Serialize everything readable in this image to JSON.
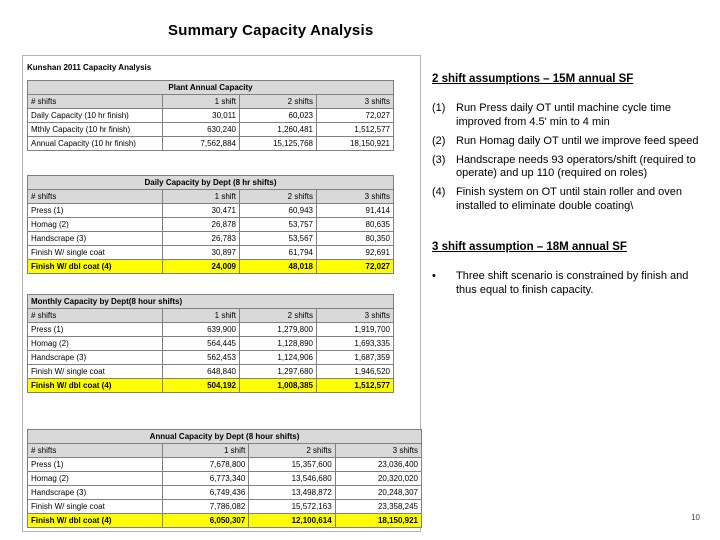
{
  "slide": {
    "title": "Summary Capacity Analysis",
    "page_number": "10"
  },
  "colors": {
    "highlight": "#ffff00",
    "header_bg": "#d9d9d9"
  },
  "worksheet": {
    "title": "Kunshan 2011 Capacity Analysis",
    "tables": [
      {
        "caption": "Plant Annual Capacity",
        "headers": [
          "# shifts",
          "1 shift",
          "2 shifts",
          "3 shifts"
        ],
        "rows": [
          {
            "label": "Daily Capacity (10 hr finish)",
            "values": [
              "30,011",
              "60,023",
              "72,027"
            ],
            "highlight": false
          },
          {
            "label": "Mthly Capacity (10 hr finish)",
            "values": [
              "630,240",
              "1,260,481",
              "1,512,577"
            ],
            "highlight": false
          },
          {
            "label": "Annual Capacity (10 hr finish)",
            "values": [
              "7,562,884",
              "15,125,768",
              "18,150,921"
            ],
            "highlight": false
          }
        ]
      },
      {
        "caption": "Daily Capacity by Dept (8 hr shifts)",
        "headers": [
          "# shifts",
          "1 shift",
          "2 shifts",
          "3 shifts"
        ],
        "rows": [
          {
            "label": "Press (1)",
            "values": [
              "30,471",
              "60,943",
              "91,414"
            ],
            "highlight": false
          },
          {
            "label": "Homag (2)",
            "values": [
              "26,878",
              "53,757",
              "80,635"
            ],
            "highlight": false
          },
          {
            "label": "Handscrape (3)",
            "values": [
              "26,783",
              "53,567",
              "80,350"
            ],
            "highlight": false
          },
          {
            "label": "Finish W/ single coat",
            "values": [
              "30,897",
              "61,794",
              "92,691"
            ],
            "highlight": false
          },
          {
            "label": "Finish W/ dbl coat (4)",
            "values": [
              "24,009",
              "48,018",
              "72,027"
            ],
            "highlight": true
          }
        ]
      },
      {
        "caption": "Monthly Capacity by Dept(8 hour shifts)",
        "headers": [
          "# shifts",
          "1 shift",
          "2 shifts",
          "3 shifts"
        ],
        "rows": [
          {
            "label": "Press (1)",
            "values": [
              "639,900",
              "1,279,800",
              "1,919,700"
            ],
            "highlight": false
          },
          {
            "label": "Homag (2)",
            "values": [
              "564,445",
              "1,128,890",
              "1,693,335"
            ],
            "highlight": false
          },
          {
            "label": "Handscrape (3)",
            "values": [
              "562,453",
              "1,124,906",
              "1,687,359"
            ],
            "highlight": false
          },
          {
            "label": "Finish W/ single coat",
            "values": [
              "648,840",
              "1,297,680",
              "1,946,520"
            ],
            "highlight": false
          },
          {
            "label": "Finish W/ dbl coat (4)",
            "values": [
              "504,192",
              "1,008,385",
              "1,512,577"
            ],
            "highlight": true
          }
        ]
      },
      {
        "caption": "Annual Capacity  by Dept (8 hour shifts)",
        "headers": [
          "# shifts",
          "1 shift",
          "2 shifts",
          "3 shifts"
        ],
        "rows": [
          {
            "label": "Press (1)",
            "values": [
              "7,678,800",
              "15,357,600",
              "23,036,400"
            ],
            "highlight": false
          },
          {
            "label": "Homag (2)",
            "values": [
              "6,773,340",
              "13,546,680",
              "20,320,020"
            ],
            "highlight": false
          },
          {
            "label": "Handscrape (3)",
            "values": [
              "6,749,436",
              "13,498,872",
              "20,248,307"
            ],
            "highlight": false
          },
          {
            "label": "Finish W/ single coat",
            "values": [
              "7,786,082",
              "15,572,163",
              "23,358,245"
            ],
            "highlight": false
          },
          {
            "label": "Finish W/ dbl coat (4)",
            "values": [
              "6,050,307",
              "12,100,614",
              "18,150,921"
            ],
            "highlight": true
          }
        ]
      }
    ]
  },
  "notes": {
    "sections": [
      {
        "heading": "2 shift assumptions – 15M annual SF",
        "items": [
          {
            "marker": "(1)",
            "text": "Run Press daily OT until machine cycle time improved from 4.5' min to 4 min"
          },
          {
            "marker": "(2)",
            "text": "Run Homag daily OT until we improve feed speed"
          },
          {
            "marker": "(3)",
            "text": "Handscrape needs 93 operators/shift (required to operate) and up 110 (required on roles)"
          },
          {
            "marker": "(4)",
            "text": "Finish system on OT until stain roller and oven installed to eliminate double coating\\"
          }
        ]
      },
      {
        "heading": "3 shift assumption – 18M annual SF",
        "items": [
          {
            "marker": "•",
            "text": "Three shift scenario is constrained by finish and thus equal to finish capacity."
          }
        ]
      }
    ]
  }
}
